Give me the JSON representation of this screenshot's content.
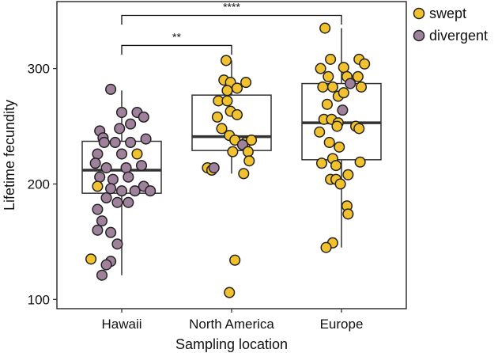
{
  "chart_data": {
    "type": "scatter",
    "subtype": "box-with-jitter",
    "title": "",
    "xlabel": "Sampling location",
    "ylabel": "Lifetime fecundity",
    "ylim": [
      92,
      358
    ],
    "yticks": [
      100,
      200,
      300
    ],
    "categories": [
      "Hawaii",
      "North America",
      "Europe"
    ],
    "grid": false,
    "legend_position": "top-right",
    "colors": {
      "swept": "#F2C12E",
      "divergent": "#A0819B",
      "stroke": "#222222"
    },
    "series": [
      {
        "name": "swept",
        "color": "#F2C12E"
      },
      {
        "name": "divergent",
        "color": "#A0819B"
      }
    ],
    "boxes": [
      {
        "category": "Hawaii",
        "q1": 192,
        "median": 212,
        "q3": 237,
        "whisker_low": 121,
        "whisker_high": 281
      },
      {
        "category": "North America",
        "q1": 229,
        "median": 241,
        "q3": 277,
        "whisker_low": 209,
        "whisker_high": 307
      },
      {
        "category": "Europe",
        "q1": 221,
        "median": 253,
        "q3": 287,
        "whisker_low": 145,
        "whisker_high": 335
      }
    ],
    "points": {
      "Hawaii": [
        {
          "d": -0.2,
          "y": 246,
          "g": "divergent"
        },
        {
          "d": -0.17,
          "y": 240,
          "g": "divergent"
        },
        {
          "d": -0.1,
          "y": 282,
          "g": "divergent"
        },
        {
          "d": 0.0,
          "y": 262,
          "g": "divergent"
        },
        {
          "d": 0.14,
          "y": 262,
          "g": "divergent"
        },
        {
          "d": 0.2,
          "y": 258,
          "g": "divergent"
        },
        {
          "d": 0.08,
          "y": 252,
          "g": "divergent"
        },
        {
          "d": -0.02,
          "y": 248,
          "g": "divergent"
        },
        {
          "d": -0.16,
          "y": 236,
          "g": "divergent"
        },
        {
          "d": -0.06,
          "y": 236,
          "g": "divergent"
        },
        {
          "d": 0.08,
          "y": 236,
          "g": "divergent"
        },
        {
          "d": 0.22,
          "y": 239,
          "g": "divergent"
        },
        {
          "d": -0.22,
          "y": 226,
          "g": "divergent"
        },
        {
          "d": 0.0,
          "y": 226,
          "g": "divergent"
        },
        {
          "d": 0.14,
          "y": 226,
          "g": "swept"
        },
        {
          "d": -0.24,
          "y": 218,
          "g": "divergent"
        },
        {
          "d": -0.14,
          "y": 214,
          "g": "divergent"
        },
        {
          "d": 0.04,
          "y": 214,
          "g": "divergent"
        },
        {
          "d": 0.18,
          "y": 216,
          "g": "divergent"
        },
        {
          "d": -0.2,
          "y": 206,
          "g": "divergent"
        },
        {
          "d": -0.08,
          "y": 204,
          "g": "divergent"
        },
        {
          "d": 0.06,
          "y": 206,
          "g": "divergent"
        },
        {
          "d": -0.22,
          "y": 198,
          "g": "swept"
        },
        {
          "d": -0.1,
          "y": 196,
          "g": "divergent"
        },
        {
          "d": 0.0,
          "y": 194,
          "g": "divergent"
        },
        {
          "d": 0.12,
          "y": 194,
          "g": "divergent"
        },
        {
          "d": 0.2,
          "y": 198,
          "g": "divergent"
        },
        {
          "d": 0.26,
          "y": 194,
          "g": "divergent"
        },
        {
          "d": -0.14,
          "y": 188,
          "g": "divergent"
        },
        {
          "d": -0.04,
          "y": 184,
          "g": "divergent"
        },
        {
          "d": 0.06,
          "y": 184,
          "g": "divergent"
        },
        {
          "d": -0.22,
          "y": 178,
          "g": "divergent"
        },
        {
          "d": -0.18,
          "y": 168,
          "g": "divergent"
        },
        {
          "d": -0.22,
          "y": 160,
          "g": "divergent"
        },
        {
          "d": -0.1,
          "y": 158,
          "g": "divergent"
        },
        {
          "d": -0.04,
          "y": 148,
          "g": "divergent"
        },
        {
          "d": -0.28,
          "y": 135,
          "g": "swept"
        },
        {
          "d": -0.1,
          "y": 133,
          "g": "divergent"
        },
        {
          "d": -0.14,
          "y": 130,
          "g": "divergent"
        },
        {
          "d": -0.18,
          "y": 121,
          "g": "divergent"
        }
      ],
      "North America": [
        {
          "d": -0.05,
          "y": 307,
          "g": "swept"
        },
        {
          "d": -0.07,
          "y": 290,
          "g": "swept"
        },
        {
          "d": -0.01,
          "y": 288,
          "g": "swept"
        },
        {
          "d": 0.13,
          "y": 288,
          "g": "swept"
        },
        {
          "d": -0.04,
          "y": 281,
          "g": "swept"
        },
        {
          "d": 0.05,
          "y": 283,
          "g": "swept"
        },
        {
          "d": -0.12,
          "y": 272,
          "g": "swept"
        },
        {
          "d": -0.04,
          "y": 272,
          "g": "swept"
        },
        {
          "d": -0.01,
          "y": 263,
          "g": "swept"
        },
        {
          "d": -0.13,
          "y": 258,
          "g": "swept"
        },
        {
          "d": 0.05,
          "y": 260,
          "g": "swept"
        },
        {
          "d": -0.09,
          "y": 248,
          "g": "swept"
        },
        {
          "d": -0.02,
          "y": 242,
          "g": "swept"
        },
        {
          "d": 0.03,
          "y": 238,
          "g": "swept"
        },
        {
          "d": 0.13,
          "y": 236,
          "g": "swept"
        },
        {
          "d": 0.18,
          "y": 238,
          "g": "swept"
        },
        {
          "d": 0.1,
          "y": 234,
          "g": "divergent"
        },
        {
          "d": 0.01,
          "y": 228,
          "g": "swept"
        },
        {
          "d": 0.15,
          "y": 228,
          "g": "swept"
        },
        {
          "d": 0.16,
          "y": 220,
          "g": "swept"
        },
        {
          "d": -0.22,
          "y": 214,
          "g": "swept"
        },
        {
          "d": -0.18,
          "y": 212,
          "g": "swept"
        },
        {
          "d": -0.16,
          "y": 214,
          "g": "divergent"
        },
        {
          "d": 0.11,
          "y": 209,
          "g": "swept"
        },
        {
          "d": 0.03,
          "y": 134,
          "g": "swept"
        },
        {
          "d": -0.02,
          "y": 106,
          "g": "swept"
        }
      ],
      "Europe": [
        {
          "d": -0.15,
          "y": 335,
          "g": "swept"
        },
        {
          "d": -0.19,
          "y": 300,
          "g": "swept"
        },
        {
          "d": -0.1,
          "y": 308,
          "g": "swept"
        },
        {
          "d": 0.02,
          "y": 301,
          "g": "swept"
        },
        {
          "d": 0.16,
          "y": 308,
          "g": "swept"
        },
        {
          "d": 0.21,
          "y": 304,
          "g": "swept"
        },
        {
          "d": -0.12,
          "y": 293,
          "g": "swept"
        },
        {
          "d": 0.05,
          "y": 293,
          "g": "swept"
        },
        {
          "d": 0.15,
          "y": 293,
          "g": "swept"
        },
        {
          "d": -0.08,
          "y": 284,
          "g": "swept"
        },
        {
          "d": 0.08,
          "y": 287,
          "g": "divergent"
        },
        {
          "d": 0.18,
          "y": 284,
          "g": "swept"
        },
        {
          "d": -0.17,
          "y": 284,
          "g": "swept"
        },
        {
          "d": -0.13,
          "y": 269,
          "g": "swept"
        },
        {
          "d": -0.03,
          "y": 276,
          "g": "swept"
        },
        {
          "d": 0.02,
          "y": 279,
          "g": "swept"
        },
        {
          "d": 0.01,
          "y": 264,
          "g": "divergent"
        },
        {
          "d": -0.16,
          "y": 256,
          "g": "swept"
        },
        {
          "d": -0.09,
          "y": 256,
          "g": "swept"
        },
        {
          "d": -0.03,
          "y": 253,
          "g": "swept"
        },
        {
          "d": -0.2,
          "y": 245,
          "g": "swept"
        },
        {
          "d": -0.04,
          "y": 250,
          "g": "swept"
        },
        {
          "d": 0.13,
          "y": 250,
          "g": "swept"
        },
        {
          "d": 0.16,
          "y": 248,
          "g": "swept"
        },
        {
          "d": -0.11,
          "y": 236,
          "g": "swept"
        },
        {
          "d": -0.02,
          "y": 232,
          "g": "swept"
        },
        {
          "d": -0.18,
          "y": 218,
          "g": "swept"
        },
        {
          "d": -0.08,
          "y": 222,
          "g": "swept"
        },
        {
          "d": 0.17,
          "y": 219,
          "g": "swept"
        },
        {
          "d": -0.05,
          "y": 216,
          "g": "swept"
        },
        {
          "d": -0.1,
          "y": 204,
          "g": "swept"
        },
        {
          "d": -0.05,
          "y": 204,
          "g": "swept"
        },
        {
          "d": 0.06,
          "y": 208,
          "g": "swept"
        },
        {
          "d": -0.01,
          "y": 200,
          "g": "swept"
        },
        {
          "d": 0.05,
          "y": 181,
          "g": "swept"
        },
        {
          "d": 0.06,
          "y": 174,
          "g": "swept"
        },
        {
          "d": -0.08,
          "y": 149,
          "g": "swept"
        },
        {
          "d": -0.14,
          "y": 145,
          "g": "swept"
        }
      ]
    },
    "significance": [
      {
        "from": "Hawaii",
        "to": "Europe",
        "label": "****",
        "y": 346,
        "tip": 338
      },
      {
        "from": "Hawaii",
        "to": "North America",
        "label": "**",
        "y": 320,
        "tip": 312
      }
    ]
  }
}
